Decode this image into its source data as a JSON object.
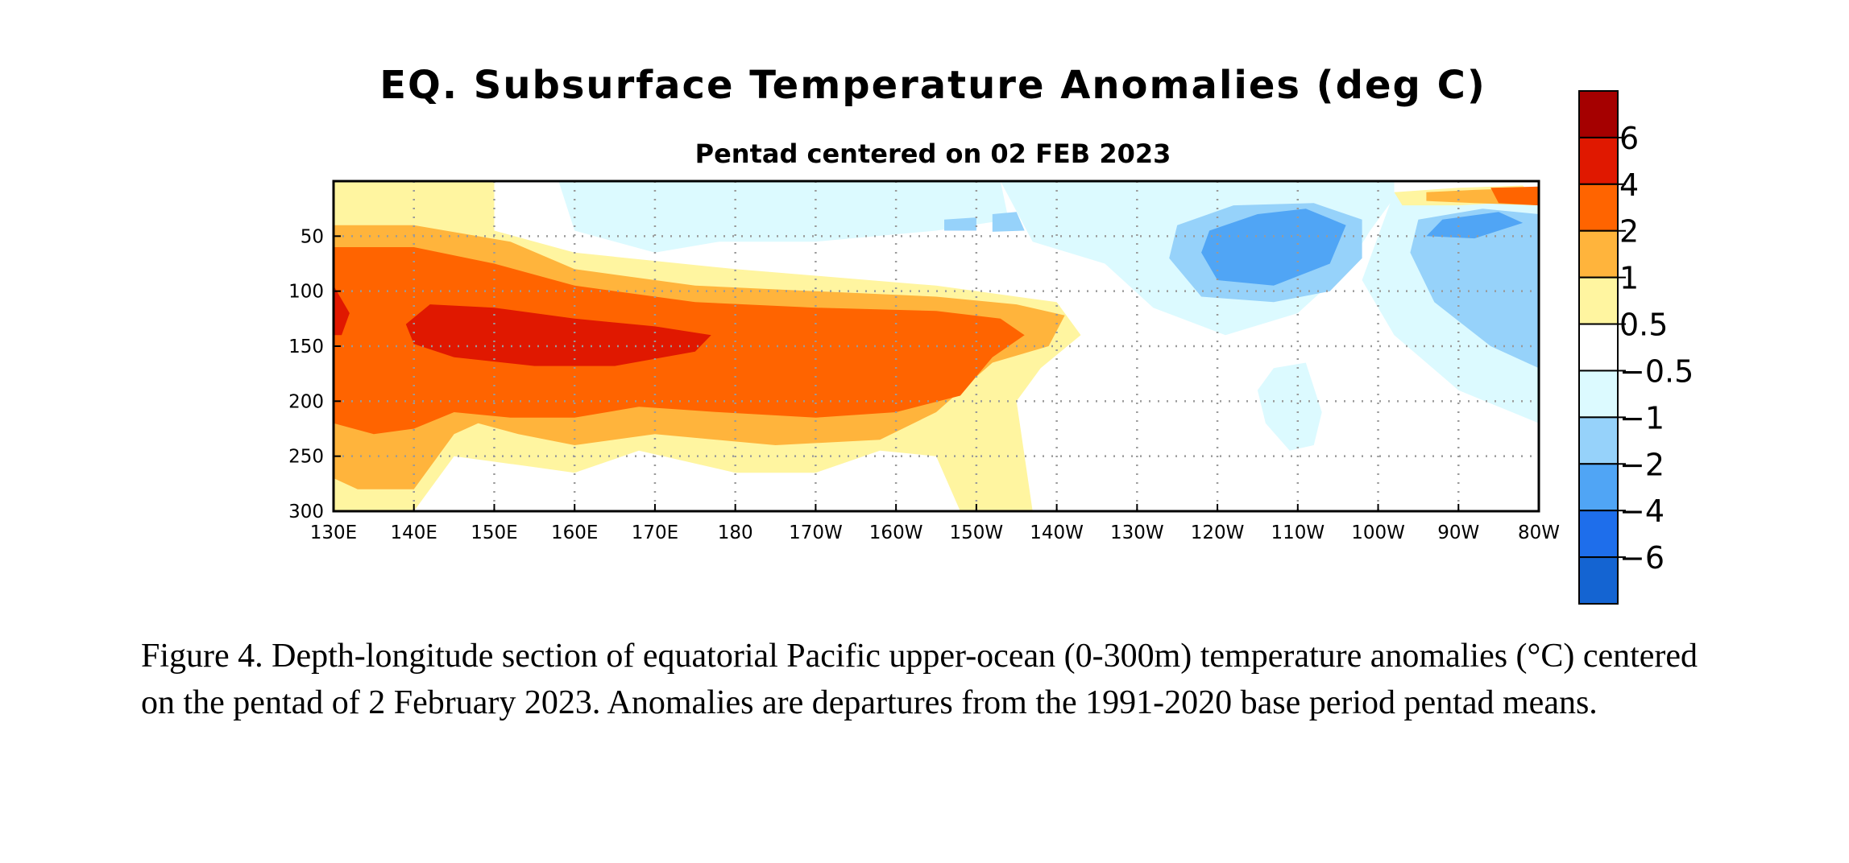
{
  "chart_data": {
    "type": "heatmap",
    "title": "EQ. Subsurface Temperature Anomalies (deg C)",
    "subtitle": "Pentad centered on 02 FEB 2023",
    "xlabel": "",
    "ylabel": "",
    "x_range": [
      130,
      280
    ],
    "y_range": [
      0,
      300
    ],
    "y_inverted": true,
    "grid": true,
    "x_ticks": [
      {
        "value": 130,
        "label": "130E"
      },
      {
        "value": 140,
        "label": "140E"
      },
      {
        "value": 150,
        "label": "150E"
      },
      {
        "value": 160,
        "label": "160E"
      },
      {
        "value": 170,
        "label": "170E"
      },
      {
        "value": 180,
        "label": "180"
      },
      {
        "value": 190,
        "label": "170W"
      },
      {
        "value": 200,
        "label": "160W"
      },
      {
        "value": 210,
        "label": "150W"
      },
      {
        "value": 220,
        "label": "140W"
      },
      {
        "value": 230,
        "label": "130W"
      },
      {
        "value": 240,
        "label": "120W"
      },
      {
        "value": 250,
        "label": "110W"
      },
      {
        "value": 260,
        "label": "100W"
      },
      {
        "value": 270,
        "label": "90W"
      },
      {
        "value": 280,
        "label": "80W"
      }
    ],
    "y_ticks": [
      {
        "value": 50,
        "label": "50"
      },
      {
        "value": 100,
        "label": "100"
      },
      {
        "value": 150,
        "label": "150"
      },
      {
        "value": 200,
        "label": "200"
      },
      {
        "value": 250,
        "label": "250"
      },
      {
        "value": 300,
        "label": "300"
      }
    ],
    "colorbar": {
      "levels": [
        {
          "label": "",
          "color": "#a50000"
        },
        {
          "label": "6",
          "color": "#e01800"
        },
        {
          "label": "4",
          "color": "#ff6400"
        },
        {
          "label": "2",
          "color": "#ffb43c"
        },
        {
          "label": "1",
          "color": "#fff5a0"
        },
        {
          "label": "0.5",
          "color": "#ffffff"
        },
        {
          "label": "−0.5",
          "color": "#dcfaff"
        },
        {
          "label": "−1",
          "color": "#96d2fa"
        },
        {
          "label": "−2",
          "color": "#50a5f5"
        },
        {
          "label": "−4",
          "color": "#1e6eeb"
        },
        {
          "label": "−6",
          "color": "#1464d2"
        }
      ]
    },
    "contour_regions": [
      {
        "level": "cold-04",
        "color": "#dcfaff",
        "points": [
          [
            158,
            0
          ],
          [
            213,
            0
          ],
          [
            214,
            35
          ],
          [
            205,
            45
          ],
          [
            190,
            55
          ],
          [
            178,
            55
          ],
          [
            170,
            65
          ],
          [
            160,
            45
          ]
        ]
      },
      {
        "level": "cold-04",
        "color": "#dcfaff",
        "points": [
          [
            213,
            0
          ],
          [
            247,
            0
          ],
          [
            262,
            0
          ],
          [
            262,
            15
          ],
          [
            259,
            45
          ],
          [
            256,
            80
          ],
          [
            250,
            120
          ],
          [
            241,
            140
          ],
          [
            232,
            115
          ],
          [
            226,
            75
          ],
          [
            217,
            55
          ]
        ]
      },
      {
        "level": "cold-04",
        "color": "#dcfaff",
        "points": [
          [
            262,
            10
          ],
          [
            280,
            10
          ],
          [
            280,
            220
          ],
          [
            270,
            190
          ],
          [
            262,
            140
          ],
          [
            258,
            90
          ]
        ]
      },
      {
        "level": "cold-04",
        "color": "#dcfaff",
        "points": [
          [
            247,
            170
          ],
          [
            251,
            165
          ],
          [
            253,
            210
          ],
          [
            252,
            240
          ],
          [
            249,
            245
          ],
          [
            246,
            220
          ],
          [
            245,
            190
          ]
        ]
      },
      {
        "level": "cold-1",
        "color": "#96d2fa",
        "points": [
          [
            235,
            40
          ],
          [
            242,
            22
          ],
          [
            252,
            20
          ],
          [
            258,
            35
          ],
          [
            258,
            70
          ],
          [
            254,
            100
          ],
          [
            247,
            110
          ],
          [
            238,
            105
          ],
          [
            234,
            70
          ]
        ]
      },
      {
        "level": "cold-1",
        "color": "#96d2fa",
        "points": [
          [
            265,
            35
          ],
          [
            273,
            25
          ],
          [
            280,
            30
          ],
          [
            280,
            170
          ],
          [
            274,
            150
          ],
          [
            267,
            110
          ],
          [
            264,
            65
          ]
        ]
      },
      {
        "level": "cold-1",
        "color": "#96d2fa",
        "points": [
          [
            206,
            35
          ],
          [
            210,
            33
          ],
          [
            210,
            45
          ],
          [
            206,
            45
          ]
        ]
      },
      {
        "level": "cold-1",
        "color": "#96d2fa",
        "points": [
          [
            212,
            30
          ],
          [
            215,
            28
          ],
          [
            216,
            45
          ],
          [
            212,
            46
          ]
        ]
      },
      {
        "level": "cold-2",
        "color": "#50a5f5",
        "points": [
          [
            239,
            45
          ],
          [
            245,
            30
          ],
          [
            251,
            25
          ],
          [
            256,
            40
          ],
          [
            254,
            75
          ],
          [
            247,
            95
          ],
          [
            240,
            90
          ],
          [
            238,
            65
          ]
        ]
      },
      {
        "level": "cold-2",
        "color": "#50a5f5",
        "points": [
          [
            268,
            35
          ],
          [
            275,
            28
          ],
          [
            278,
            38
          ],
          [
            272,
            52
          ],
          [
            266,
            50
          ]
        ]
      },
      {
        "level": "warm-05",
        "color": "#fff5a0",
        "points": [
          [
            130,
            0
          ],
          [
            150,
            0
          ],
          [
            150,
            45
          ],
          [
            160,
            65
          ],
          [
            180,
            80
          ],
          [
            205,
            95
          ],
          [
            220,
            110
          ],
          [
            223,
            140
          ],
          [
            218,
            170
          ],
          [
            215,
            200
          ],
          [
            217,
            300
          ],
          [
            208,
            300
          ],
          [
            205,
            250
          ],
          [
            198,
            245
          ],
          [
            190,
            265
          ],
          [
            180,
            265
          ],
          [
            168,
            245
          ],
          [
            160,
            265
          ],
          [
            155,
            260
          ],
          [
            150,
            255
          ],
          [
            145,
            250
          ],
          [
            140,
            300
          ],
          [
            130,
            300
          ]
        ]
      },
      {
        "level": "warm-05",
        "color": "#fff5a0",
        "points": [
          [
            262,
            10
          ],
          [
            270,
            6
          ],
          [
            278,
            4
          ],
          [
            280,
            18
          ],
          [
            270,
            22
          ],
          [
            263,
            22
          ]
        ]
      },
      {
        "level": "warm-1",
        "color": "#ffb43c",
        "points": [
          [
            130,
            40
          ],
          [
            140,
            40
          ],
          [
            152,
            55
          ],
          [
            160,
            80
          ],
          [
            175,
            95
          ],
          [
            190,
            100
          ],
          [
            205,
            105
          ],
          [
            215,
            112
          ],
          [
            221,
            122
          ],
          [
            219,
            150
          ],
          [
            212,
            165
          ],
          [
            205,
            210
          ],
          [
            198,
            235
          ],
          [
            185,
            240
          ],
          [
            170,
            230
          ],
          [
            160,
            240
          ],
          [
            153,
            230
          ],
          [
            148,
            220
          ],
          [
            145,
            230
          ],
          [
            140,
            280
          ],
          [
            133,
            280
          ],
          [
            130,
            270
          ]
        ]
      },
      {
        "level": "warm-1",
        "color": "#ffb43c",
        "points": [
          [
            266,
            10
          ],
          [
            272,
            8
          ],
          [
            280,
            6
          ],
          [
            280,
            22
          ],
          [
            272,
            20
          ],
          [
            266,
            18
          ]
        ]
      },
      {
        "level": "warm-2",
        "color": "#ff6400",
        "points": [
          [
            130,
            60
          ],
          [
            140,
            60
          ],
          [
            150,
            75
          ],
          [
            160,
            95
          ],
          [
            175,
            110
          ],
          [
            190,
            115
          ],
          [
            205,
            118
          ],
          [
            213,
            125
          ],
          [
            216,
            140
          ],
          [
            212,
            160
          ],
          [
            208,
            195
          ],
          [
            200,
            210
          ],
          [
            190,
            215
          ],
          [
            178,
            210
          ],
          [
            168,
            205
          ],
          [
            160,
            215
          ],
          [
            152,
            215
          ],
          [
            145,
            210
          ],
          [
            140,
            225
          ],
          [
            135,
            230
          ],
          [
            130,
            220
          ]
        ]
      },
      {
        "level": "warm-2",
        "color": "#ff6400",
        "points": [
          [
            274,
            6
          ],
          [
            280,
            5
          ],
          [
            280,
            22
          ],
          [
            275,
            20
          ]
        ]
      },
      {
        "level": "warm-4",
        "color": "#e01800",
        "points": [
          [
            130,
            95
          ],
          [
            132,
            120
          ],
          [
            131,
            140
          ],
          [
            130,
            140
          ]
        ]
      },
      {
        "level": "warm-4",
        "color": "#e01800",
        "points": [
          [
            139,
            130
          ],
          [
            142,
            112
          ],
          [
            150,
            115
          ],
          [
            160,
            125
          ],
          [
            170,
            132
          ],
          [
            177,
            140
          ],
          [
            175,
            155
          ],
          [
            165,
            168
          ],
          [
            155,
            168
          ],
          [
            145,
            160
          ],
          [
            140,
            148
          ]
        ]
      }
    ]
  },
  "caption": "Figure 4. Depth-longitude section of equatorial Pacific upper-ocean (0-300m) temperature anomalies (°C) centered on the pentad of 2 February 2023. Anomalies are departures from the 1991-2020 base period pentad means."
}
